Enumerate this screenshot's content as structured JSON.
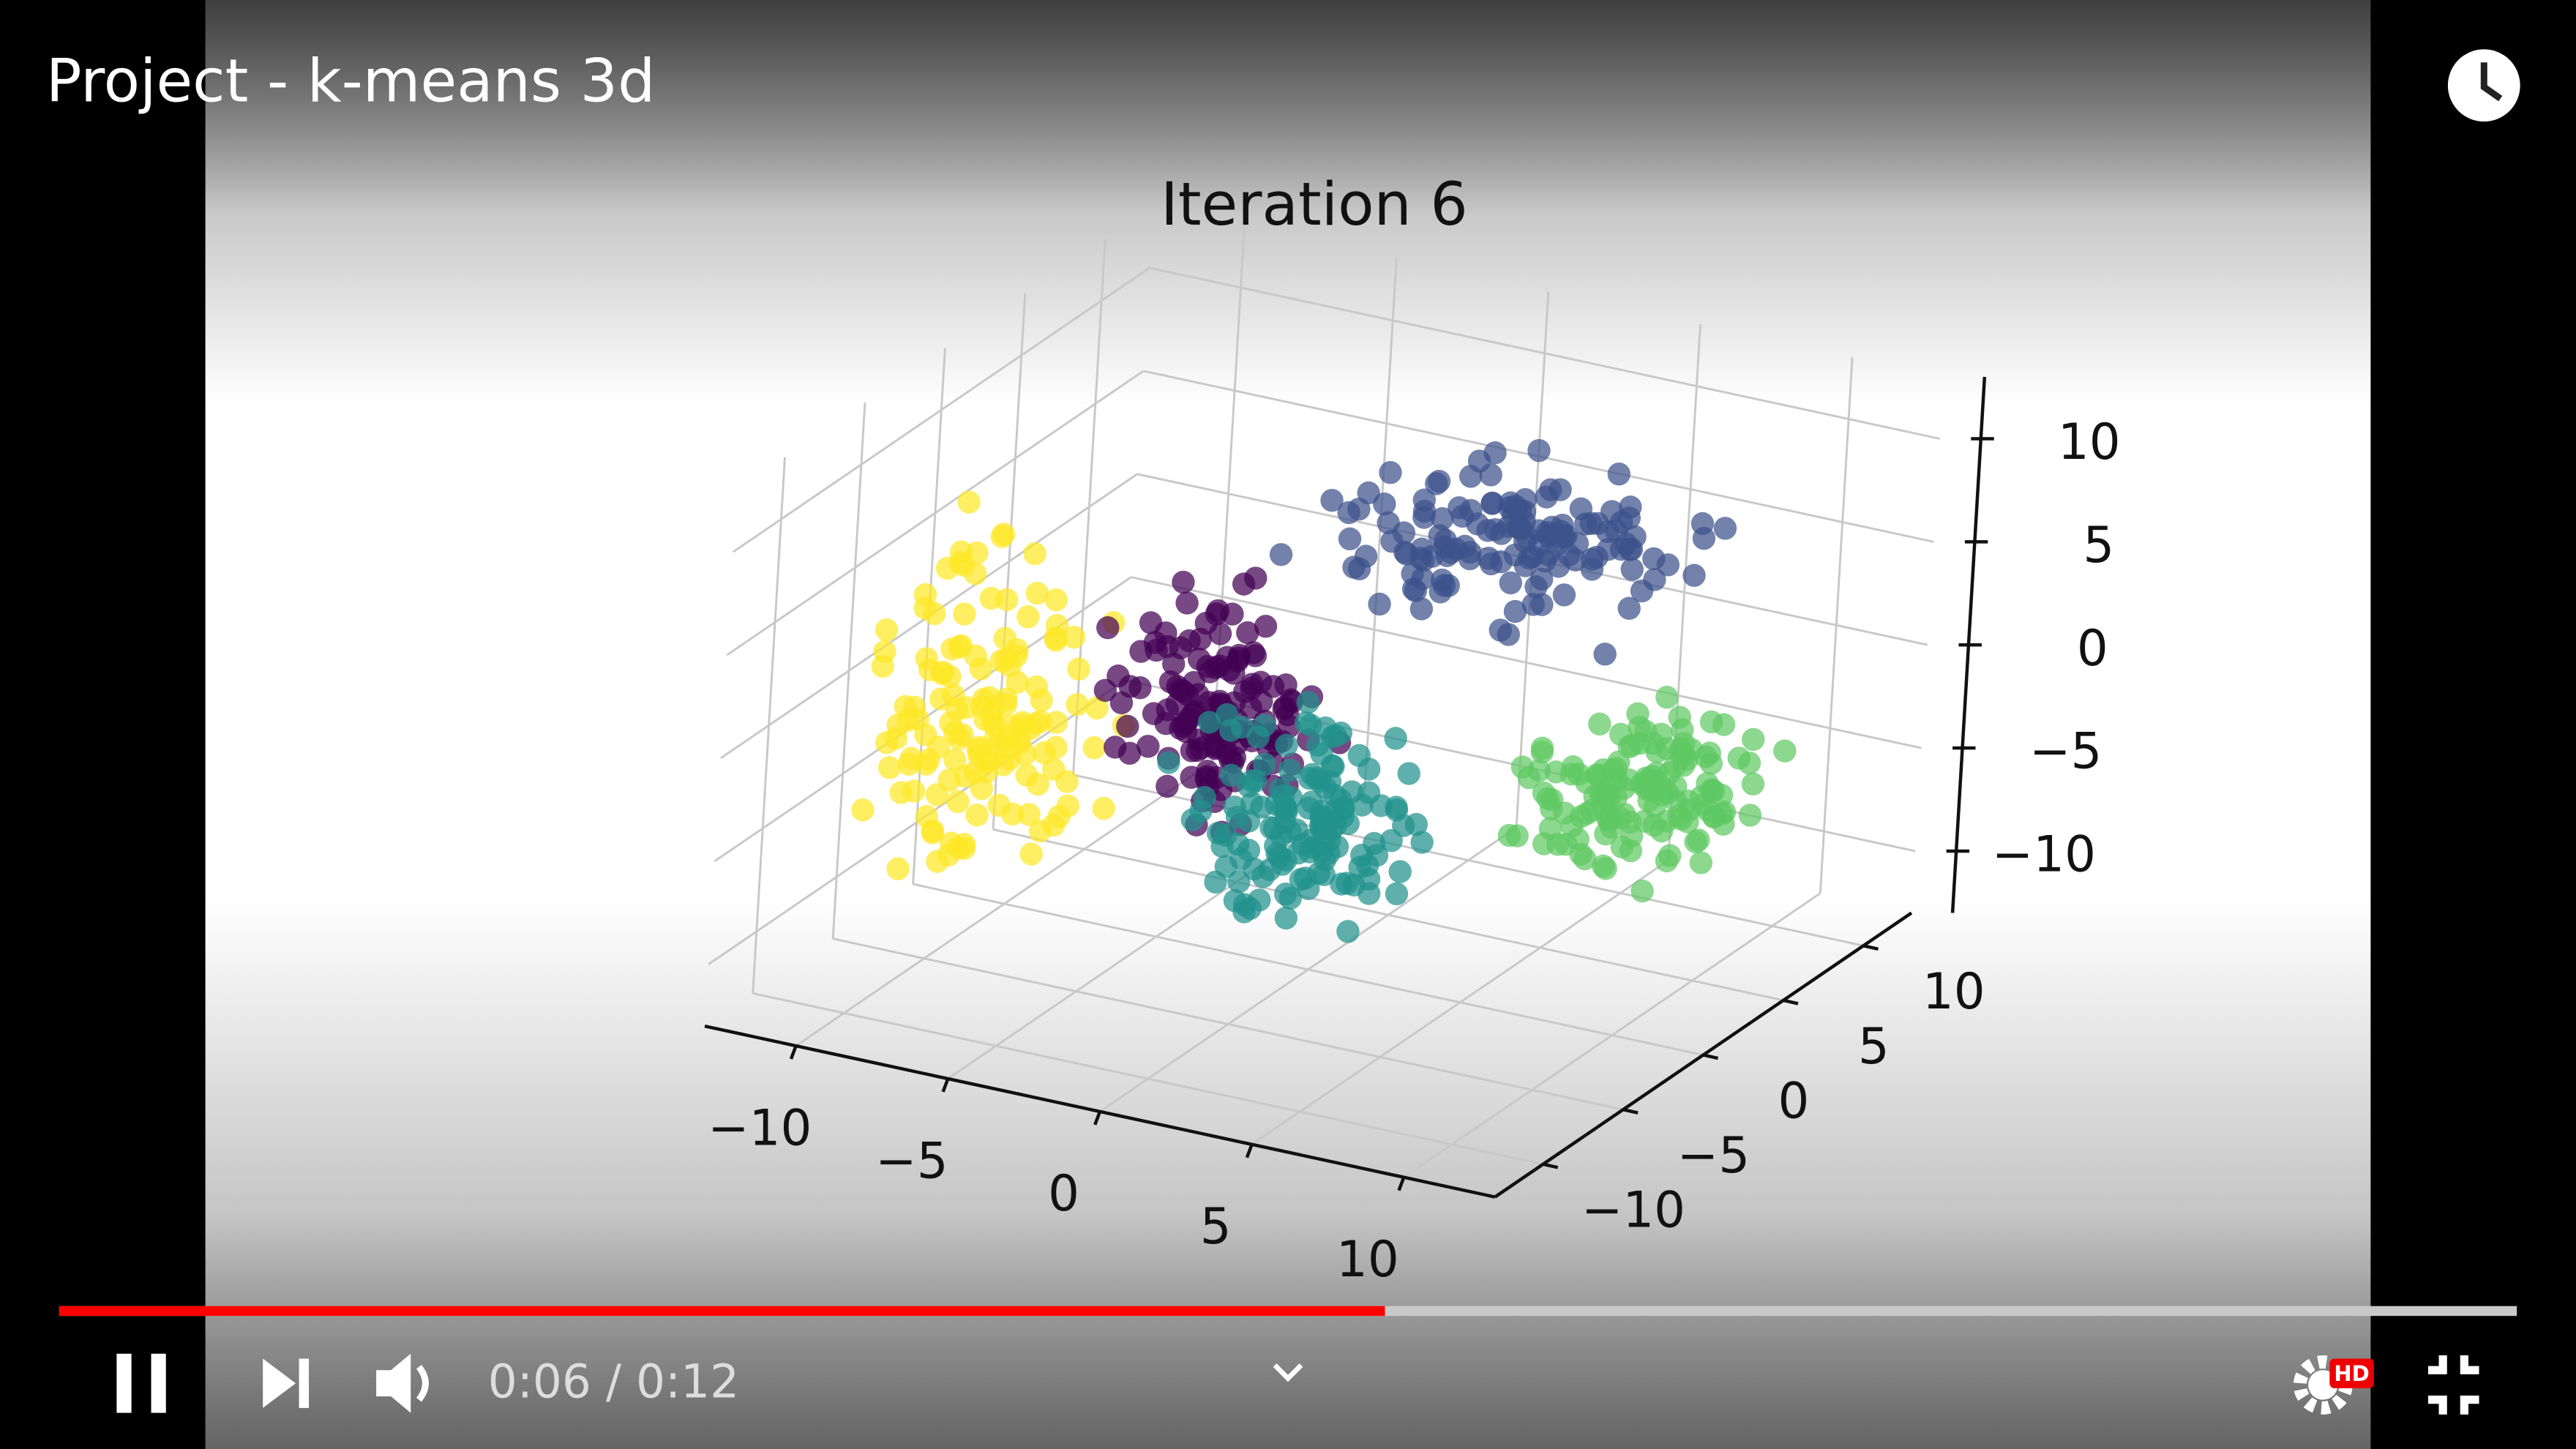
{
  "player": {
    "video_title": "Project - k-means 3d",
    "time_display": "0:06 / 0:12",
    "hd_badge": "HD"
  },
  "chart_data": {
    "type": "scatter3d",
    "title": "Iteration 6",
    "xlim": [
      -13,
      13
    ],
    "ylim": [
      -13,
      13
    ],
    "zlim": [
      -13,
      13
    ],
    "xticks": [
      {
        "value": -10,
        "label": "−10"
      },
      {
        "value": -5,
        "label": "−5"
      },
      0,
      5,
      10
    ],
    "yticks": [
      {
        "value": -10,
        "label": "−10"
      },
      {
        "value": -5,
        "label": "−5"
      },
      0,
      5,
      10
    ],
    "zticks": [
      {
        "value": -10,
        "label": "−10"
      },
      {
        "value": -5,
        "label": "−5"
      },
      0,
      5,
      10
    ],
    "grid": true
  }
}
